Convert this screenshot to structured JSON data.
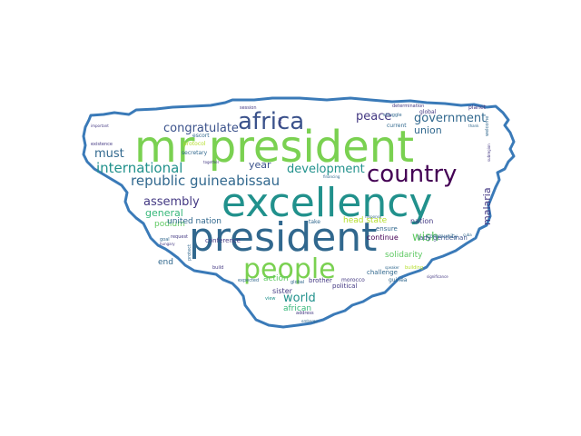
{
  "palette": {
    "outline": "#3a7ab8",
    "background": "#ffffff",
    "green_light": "#7ad151",
    "green": "#5ec962",
    "teal": "#21918c",
    "teal_dark": "#2a788e",
    "blue": "#31688e",
    "blue_dark": "#3b528b",
    "indigo": "#443983",
    "purple": "#440154",
    "yellow": "#fde725",
    "lime": "#b5de2b",
    "aqua": "#35b779"
  },
  "words": [
    {
      "text": "mr president",
      "color": "#7ad151",
      "size": 48,
      "weight": 1.0
    },
    {
      "text": "excellency",
      "color": "#21918c",
      "size": 44,
      "weight": 0.95
    },
    {
      "text": "president",
      "color": "#31688e",
      "size": 44,
      "weight": 0.95
    },
    {
      "text": "africa",
      "color": "#3b528b",
      "size": 26,
      "weight": 0.6
    },
    {
      "text": "country",
      "color": "#440154",
      "size": 26,
      "weight": 0.6
    },
    {
      "text": "people",
      "color": "#7ad151",
      "size": 30,
      "weight": 0.65
    },
    {
      "text": "international",
      "color": "#21918c",
      "size": 15,
      "weight": 0.35
    },
    {
      "text": "republic guineabissau",
      "color": "#31688e",
      "size": 15,
      "weight": 0.35
    },
    {
      "text": "congratulate",
      "color": "#3b528b",
      "size": 13,
      "weight": 0.3
    },
    {
      "text": "government",
      "color": "#31688e",
      "size": 13,
      "weight": 0.3
    },
    {
      "text": "peace",
      "color": "#443983",
      "size": 13,
      "weight": 0.3
    },
    {
      "text": "development",
      "color": "#21918c",
      "size": 13,
      "weight": 0.3
    },
    {
      "text": "assembly",
      "color": "#443983",
      "size": 13,
      "weight": 0.3
    },
    {
      "text": "must",
      "color": "#31688e",
      "size": 13,
      "weight": 0.3
    },
    {
      "text": "wish",
      "color": "#5ec962",
      "size": 13,
      "weight": 0.3
    },
    {
      "text": "world",
      "color": "#21918c",
      "size": 13,
      "weight": 0.3
    },
    {
      "text": "general",
      "color": "#35b779",
      "size": 11,
      "weight": 0.25
    },
    {
      "text": "union",
      "color": "#31688e",
      "size": 11,
      "weight": 0.25
    },
    {
      "text": "malaria",
      "color": "#443983",
      "size": 11,
      "weight": 0.25
    },
    {
      "text": "year",
      "color": "#3b528b",
      "size": 11,
      "weight": 0.25
    },
    {
      "text": "podium",
      "color": "#5ec962",
      "size": 9,
      "weight": 0.2
    },
    {
      "text": "united nation",
      "color": "#31688e",
      "size": 9,
      "weight": 0.2
    },
    {
      "text": "head state",
      "color": "#b5de2b",
      "size": 9,
      "weight": 0.2
    },
    {
      "text": "nation",
      "color": "#443983",
      "size": 8,
      "weight": 0.18
    },
    {
      "text": "solidarity",
      "color": "#5ec962",
      "size": 9,
      "weight": 0.2
    },
    {
      "text": "end",
      "color": "#31688e",
      "size": 9,
      "weight": 0.2
    },
    {
      "text": "action",
      "color": "#5ec962",
      "size": 9,
      "weight": 0.2
    },
    {
      "text": "sister",
      "color": "#443983",
      "size": 8,
      "weight": 0.18
    },
    {
      "text": "african",
      "color": "#35b779",
      "size": 9,
      "weight": 0.2
    },
    {
      "text": "continue",
      "color": "#440154",
      "size": 8,
      "weight": 0.18
    },
    {
      "text": "lady gentleman",
      "color": "#3b528b",
      "size": 7,
      "weight": 0.15
    },
    {
      "text": "ensure",
      "color": "#31688e",
      "size": 7,
      "weight": 0.15
    },
    {
      "text": "community",
      "color": "#31688e",
      "size": 6,
      "weight": 0.12
    },
    {
      "text": "political",
      "color": "#443983",
      "size": 7,
      "weight": 0.15
    },
    {
      "text": "brother",
      "color": "#443983",
      "size": 7,
      "weight": 0.15
    },
    {
      "text": "challenge",
      "color": "#31688e",
      "size": 7,
      "weight": 0.15
    },
    {
      "text": "conference",
      "color": "#443983",
      "size": 7,
      "weight": 0.15
    },
    {
      "text": "secretary",
      "color": "#31688e",
      "size": 6,
      "weight": 0.12
    },
    {
      "text": "protocol",
      "color": "#b5de2b",
      "size": 6,
      "weight": 0.12
    },
    {
      "text": "escort",
      "color": "#31688e",
      "size": 6,
      "weight": 0.12
    },
    {
      "text": "current",
      "color": "#31688e",
      "size": 6,
      "weight": 0.12
    },
    {
      "text": "global",
      "color": "#443983",
      "size": 6,
      "weight": 0.12
    },
    {
      "text": "planet",
      "color": "#443983",
      "size": 6,
      "weight": 0.12
    },
    {
      "text": "morocco",
      "color": "#443983",
      "size": 6,
      "weight": 0.12
    },
    {
      "text": "guinea",
      "color": "#31688e",
      "size": 6,
      "weight": 0.12
    },
    {
      "text": "take",
      "color": "#31688e",
      "size": 6,
      "weight": 0.12
    },
    {
      "text": "goal",
      "color": "#31688e",
      "size": 5,
      "weight": 0.1
    },
    {
      "text": "build",
      "color": "#443983",
      "size": 5,
      "weight": 0.1
    },
    {
      "text": "view",
      "color": "#21918c",
      "size": 5,
      "weight": 0.1
    },
    {
      "text": "request",
      "color": "#443983",
      "size": 5,
      "weight": 0.1
    },
    {
      "text": "address",
      "color": "#443983",
      "size": 5,
      "weight": 0.1
    },
    {
      "text": "expected",
      "color": "#31688e",
      "size": 5,
      "weight": 0.1
    },
    {
      "text": "global",
      "color": "#31688e",
      "size": 5,
      "weight": 0.1
    },
    {
      "text": "session",
      "color": "#443983",
      "size": 5,
      "weight": 0.1
    },
    {
      "text": "struggle",
      "color": "#31688e",
      "size": 5,
      "weight": 0.1
    },
    {
      "text": "determination",
      "color": "#443983",
      "size": 5,
      "weight": 0.1
    },
    {
      "text": "existence",
      "color": "#443983",
      "size": 5,
      "weight": 0.1
    },
    {
      "text": "protect",
      "color": "#31688e",
      "size": 5,
      "weight": 0.1
    },
    {
      "text": "building",
      "color": "#b5de2b",
      "size": 5,
      "weight": 0.1
    },
    {
      "text": "embargo",
      "color": "#31688e",
      "size": 4,
      "weight": 0.08
    },
    {
      "text": "hungary",
      "color": "#443983",
      "size": 4,
      "weight": 0.08
    },
    {
      "text": "welcome",
      "color": "#31688e",
      "size": 5,
      "weight": 0.1
    },
    {
      "text": "subregion",
      "color": "#443983",
      "size": 4,
      "weight": 0.08
    },
    {
      "text": "cuba",
      "color": "#31688e",
      "size": 4,
      "weight": 0.08
    },
    {
      "text": "thank",
      "color": "#31688e",
      "size": 4,
      "weight": 0.08
    },
    {
      "text": "much",
      "color": "#443983",
      "size": 4,
      "weight": 0.08
    },
    {
      "text": "important",
      "color": "#443983",
      "size": 4,
      "weight": 0.08
    },
    {
      "text": "speaker",
      "color": "#31688e",
      "size": 4,
      "weight": 0.08
    },
    {
      "text": "significance",
      "color": "#443983",
      "size": 4,
      "weight": 0.08
    },
    {
      "text": "financing",
      "color": "#31688e",
      "size": 4,
      "weight": 0.08
    },
    {
      "text": "together",
      "color": "#443983",
      "size": 4,
      "weight": 0.08
    },
    {
      "text": "response",
      "color": "#31688e",
      "size": 4,
      "weight": 0.08
    }
  ]
}
